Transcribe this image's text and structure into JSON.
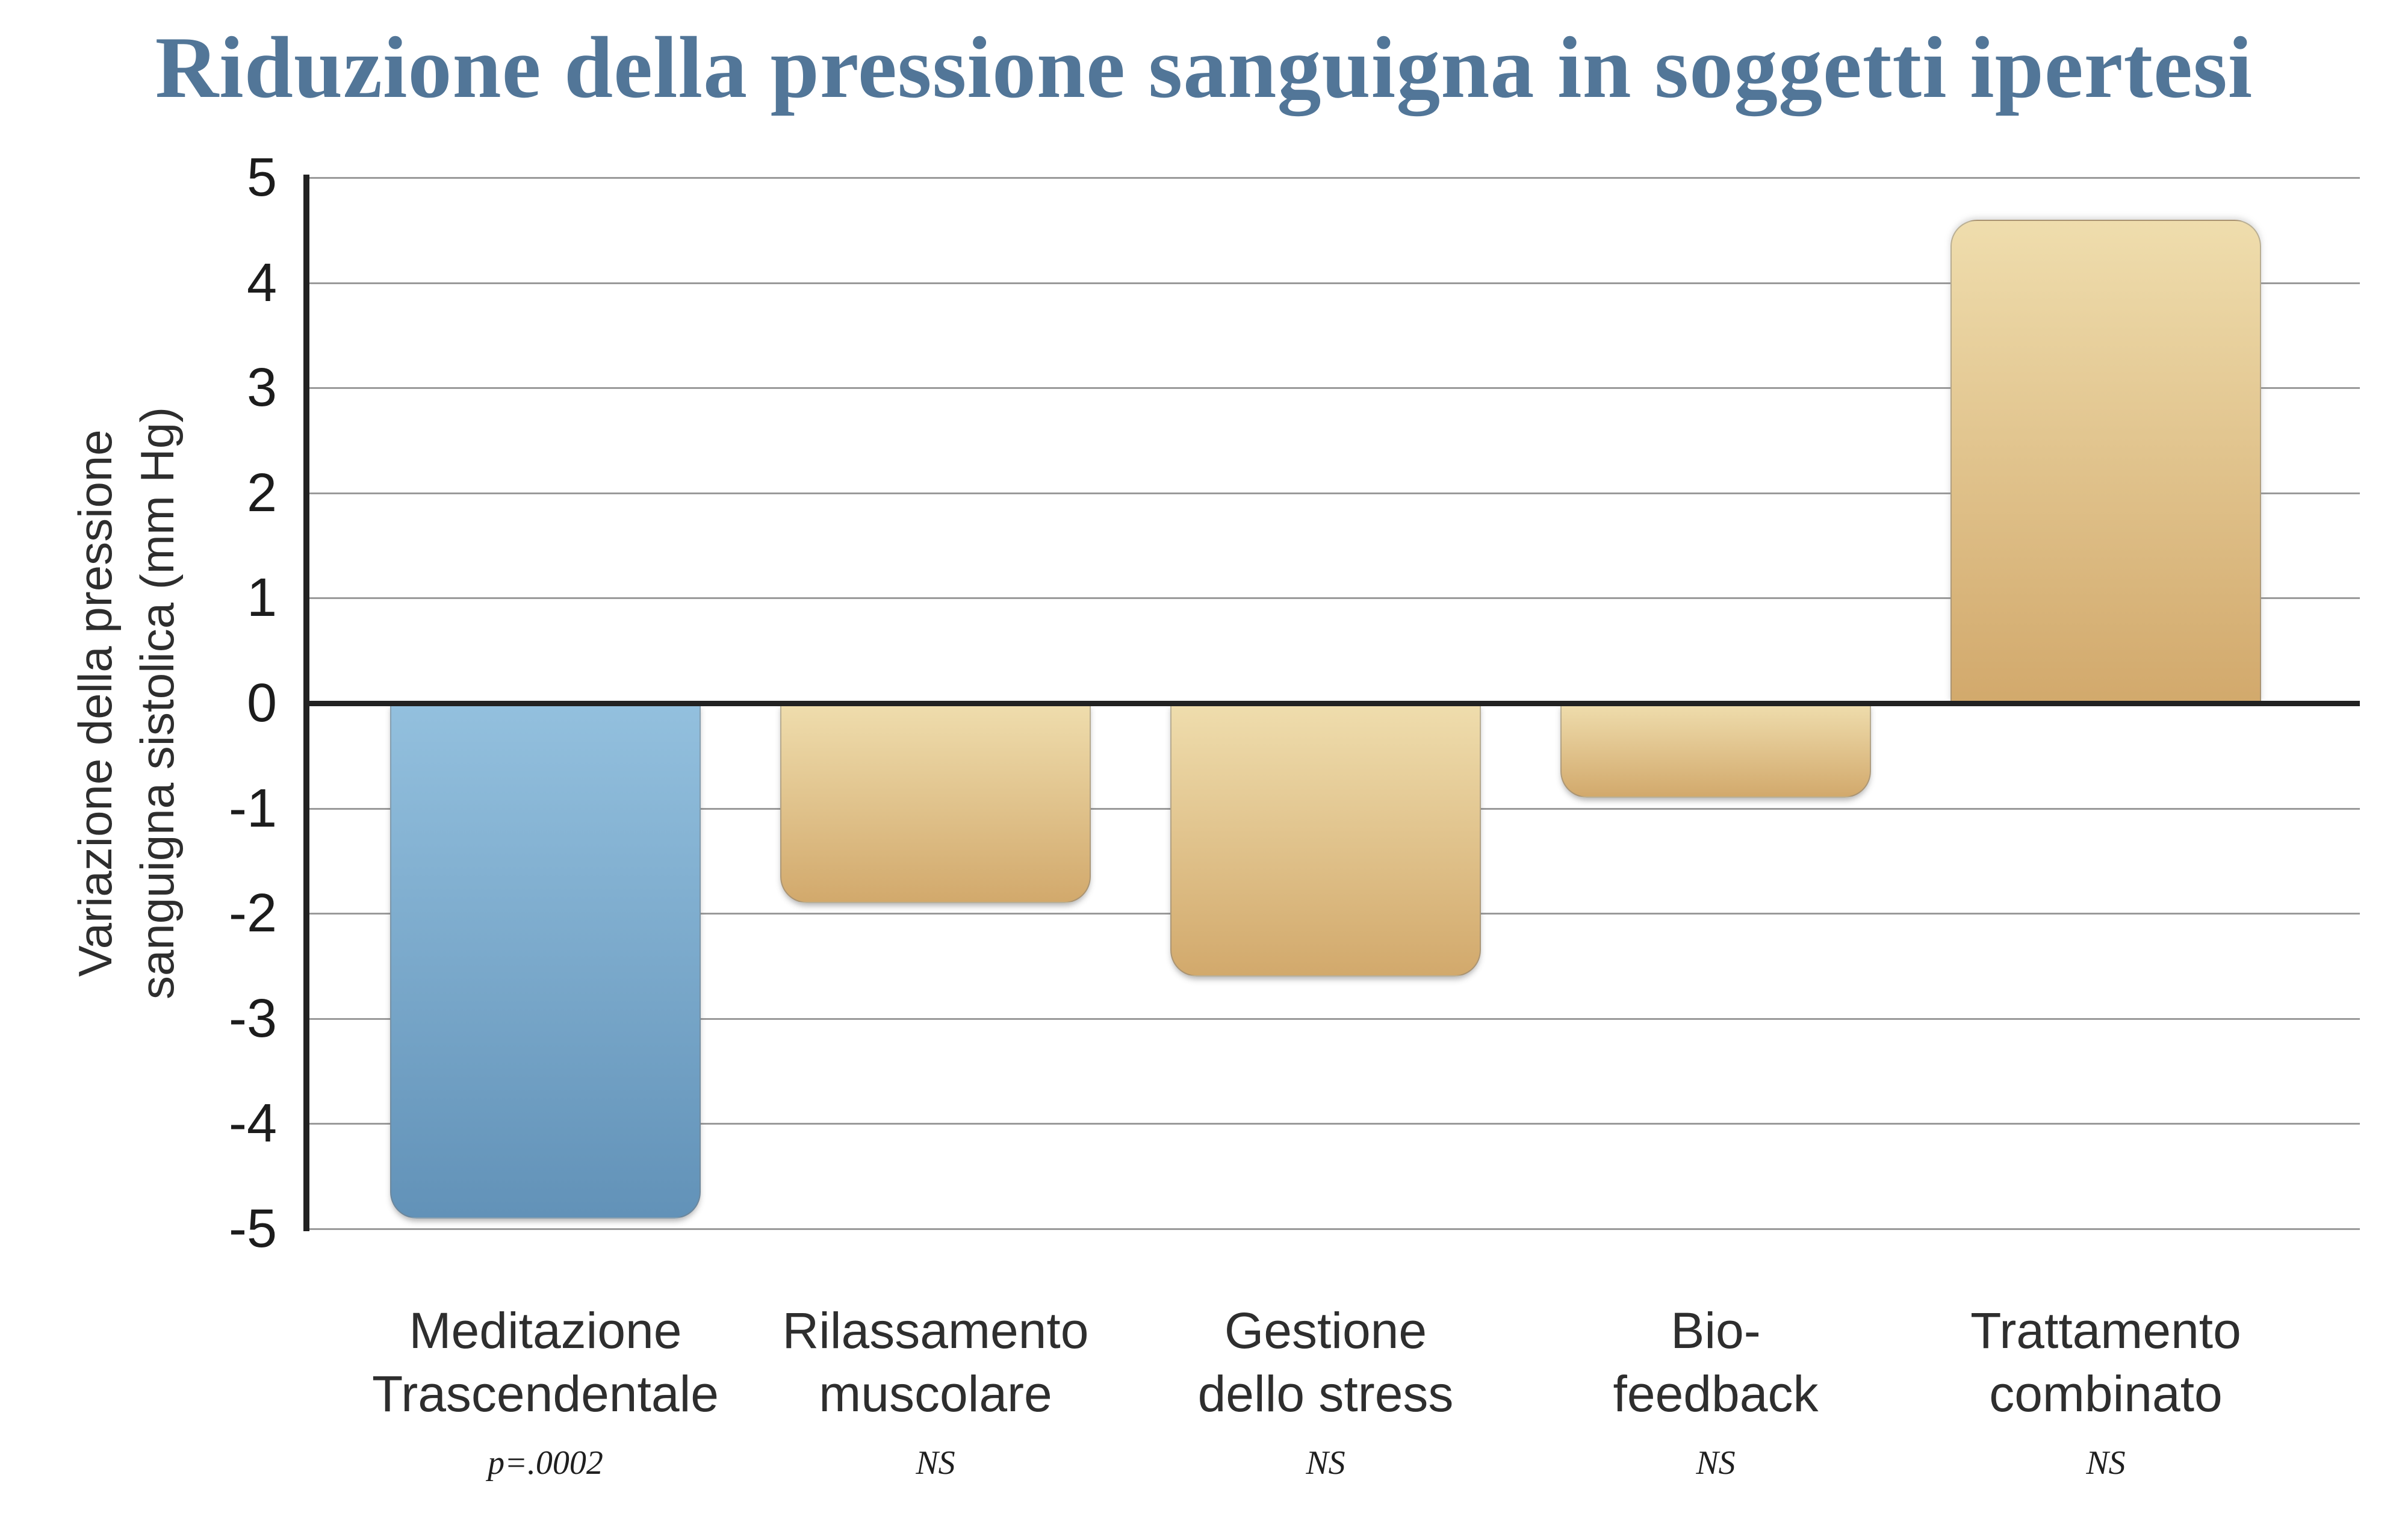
{
  "title": "Riduzione della pressione sanguigna in soggetti ipertesi",
  "y_axis": {
    "label_line1": "Variazione della pressione",
    "label_line2": "sanguigna sistolica (mm Hg)",
    "ticks": [
      "5",
      "4",
      "3",
      "2",
      "1",
      "0",
      "-1",
      "-2",
      "-3",
      "-4",
      "-5"
    ]
  },
  "colors": {
    "title_text": "#527698",
    "blue_top": "#93c0de",
    "blue_bottom": "#6292b8",
    "tan_top": "#efddad",
    "tan_bottom": "#d2a96c",
    "zero_line": "#222222",
    "gridline": "#9a9a9a",
    "label_text": "#2e2e2e"
  },
  "bars": [
    {
      "label_lines": [
        "Meditazione",
        "Trascendentale"
      ],
      "value": -4.9,
      "annotation": "p=.0002",
      "color": "blue"
    },
    {
      "label_lines": [
        "Rilassamento",
        "muscolare"
      ],
      "value": -1.9,
      "annotation": "NS",
      "color": "tan"
    },
    {
      "label_lines": [
        "Gestione",
        "dello stress"
      ],
      "value": -2.6,
      "annotation": "NS",
      "color": "tan"
    },
    {
      "label_lines": [
        "Bio-",
        "feedback"
      ],
      "value": -0.9,
      "annotation": "NS",
      "color": "tan"
    },
    {
      "label_lines": [
        "Trattamento",
        "combinato"
      ],
      "value": 4.6,
      "annotation": "NS",
      "color": "tan"
    }
  ],
  "chart_data": {
    "type": "bar",
    "title": "Riduzione della pressione sanguigna in soggetti ipertesi",
    "xlabel": "",
    "ylabel": "Variazione della pressione sanguigna sistolica (mm Hg)",
    "ylim": [
      -5,
      5
    ],
    "grid": true,
    "legend_position": "none",
    "categories": [
      "Meditazione Trascendentale",
      "Rilassamento muscolare",
      "Gestione dello stress",
      "Bio-feedback",
      "Trattamento combinato"
    ],
    "values": [
      -4.9,
      -1.9,
      -2.6,
      -0.9,
      4.6
    ],
    "annotations": [
      "p=.0002",
      "NS",
      "NS",
      "NS",
      "NS"
    ],
    "bar_colors": [
      "blue",
      "tan",
      "tan",
      "tan",
      "tan"
    ]
  }
}
